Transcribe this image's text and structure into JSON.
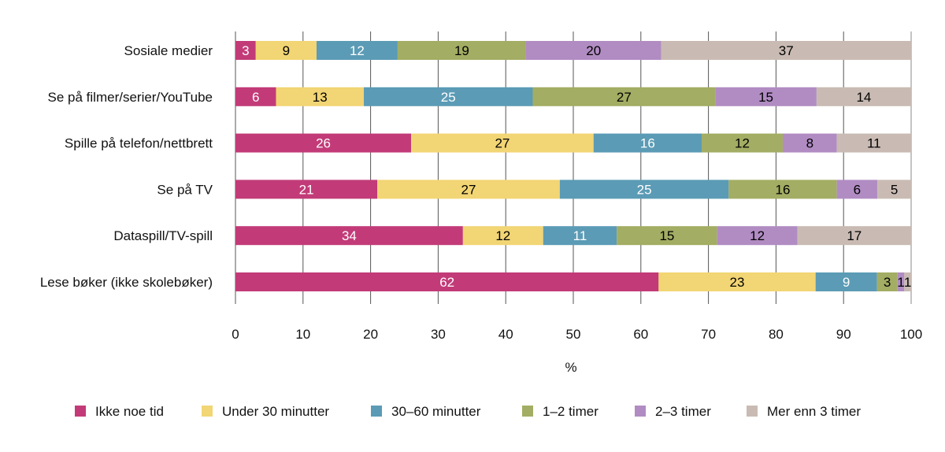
{
  "chart_data": {
    "type": "bar",
    "orientation": "horizontal",
    "stacked": true,
    "categories": [
      "Sosiale medier",
      "Se på filmer/serier/YouTube",
      "Spille på telefon/nettbrett",
      "Se på TV",
      "Dataspill/TV-spill",
      "Lese bøker (ikke skolebøker)"
    ],
    "series": [
      {
        "name": "Ikke noe tid",
        "color": "#c23b78",
        "label_color": "#ffffff",
        "values": [
          3,
          6,
          26,
          21,
          34,
          62
        ]
      },
      {
        "name": "Under 30 minutter",
        "color": "#f2d574",
        "label_color": "#000000",
        "values": [
          9,
          13,
          27,
          27,
          12,
          23
        ]
      },
      {
        "name": "30–60 minutter",
        "color": "#5b9bb5",
        "label_color": "#ffffff",
        "values": [
          12,
          25,
          16,
          25,
          11,
          9
        ]
      },
      {
        "name": "1–2 timer",
        "color": "#a3ad63",
        "label_color": "#000000",
        "values": [
          19,
          27,
          12,
          16,
          15,
          3
        ]
      },
      {
        "name": "2–3 timer",
        "color": "#b18cc3",
        "label_color": "#000000",
        "values": [
          20,
          15,
          8,
          6,
          12,
          1
        ]
      },
      {
        "name": "Mer enn 3 timer",
        "color": "#c9bbb3",
        "label_color": "#000000",
        "values": [
          37,
          14,
          11,
          5,
          17,
          1
        ]
      }
    ],
    "xlabel": "%",
    "xlim": [
      0,
      100
    ],
    "xticks": [
      0,
      10,
      20,
      30,
      40,
      50,
      60,
      70,
      80,
      90,
      100
    ],
    "grid": "vertical",
    "legend": "bottom"
  }
}
